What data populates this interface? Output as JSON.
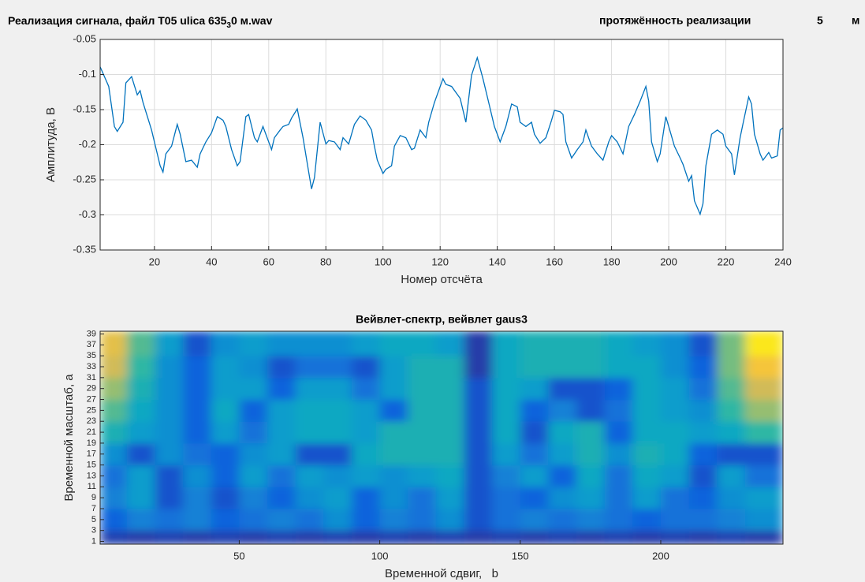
{
  "header": {
    "title_parts": [
      "Реализация сигнала, файл T05 ulica 635",
      "3",
      "0 м.wav"
    ],
    "length_label": "протяжённость реализации",
    "length_value": 5,
    "length_unit": "м"
  },
  "chart_data": [
    {
      "type": "line",
      "xlabel": "Номер отсчёта",
      "ylabel": "Амплитуда, В",
      "grid": true,
      "xlim": [
        1,
        240
      ],
      "xticks": [
        20,
        40,
        60,
        80,
        100,
        120,
        140,
        160,
        180,
        200,
        220,
        240
      ],
      "ylim": [
        -0.35,
        -0.05
      ],
      "yticks": [
        -0.35,
        -0.3,
        -0.25,
        -0.2,
        -0.15,
        -0.1,
        -0.05
      ],
      "color": "#0072bd",
      "x": [
        1,
        4,
        6,
        7,
        9,
        10,
        12,
        14,
        15,
        16,
        19,
        22,
        23,
        24,
        26,
        28,
        29,
        31,
        33,
        35,
        36,
        38,
        40,
        42,
        44,
        45,
        47,
        49,
        50,
        52,
        53,
        55,
        56,
        58,
        61,
        62,
        64,
        65,
        67,
        68,
        70,
        72,
        74,
        75,
        76,
        78,
        80,
        81,
        83,
        85,
        86,
        88,
        90,
        92,
        94,
        96,
        97,
        98,
        100,
        101,
        103,
        104,
        106,
        108,
        110,
        111,
        113,
        115,
        116,
        118,
        121,
        122,
        124,
        127,
        129,
        131,
        133,
        135,
        137,
        139,
        141,
        143,
        145,
        147,
        148,
        150,
        152,
        153,
        155,
        157,
        159,
        160,
        162,
        163,
        164,
        166,
        168,
        170,
        171,
        173,
        175,
        177,
        179,
        180,
        182,
        184,
        186,
        188,
        190,
        192,
        193,
        194,
        196,
        197,
        199,
        200,
        202,
        204,
        205,
        207,
        208,
        209,
        211,
        212,
        213,
        215,
        217,
        219,
        220,
        222,
        223,
        225,
        226,
        228,
        229,
        230,
        232,
        233,
        235,
        236,
        238,
        239,
        240
      ],
      "values": [
        -0.089,
        -0.117,
        -0.174,
        -0.181,
        -0.168,
        -0.112,
        -0.103,
        -0.129,
        -0.123,
        -0.14,
        -0.179,
        -0.23,
        -0.239,
        -0.213,
        -0.202,
        -0.171,
        -0.185,
        -0.224,
        -0.222,
        -0.232,
        -0.213,
        -0.196,
        -0.183,
        -0.16,
        -0.165,
        -0.174,
        -0.207,
        -0.23,
        -0.224,
        -0.16,
        -0.157,
        -0.19,
        -0.196,
        -0.174,
        -0.207,
        -0.19,
        -0.179,
        -0.174,
        -0.171,
        -0.162,
        -0.149,
        -0.19,
        -0.239,
        -0.263,
        -0.247,
        -0.168,
        -0.199,
        -0.194,
        -0.196,
        -0.207,
        -0.19,
        -0.199,
        -0.171,
        -0.159,
        -0.165,
        -0.179,
        -0.202,
        -0.222,
        -0.241,
        -0.235,
        -0.23,
        -0.202,
        -0.187,
        -0.19,
        -0.207,
        -0.205,
        -0.179,
        -0.19,
        -0.168,
        -0.14,
        -0.106,
        -0.114,
        -0.117,
        -0.134,
        -0.168,
        -0.101,
        -0.076,
        -0.106,
        -0.14,
        -0.174,
        -0.196,
        -0.174,
        -0.142,
        -0.146,
        -0.168,
        -0.174,
        -0.168,
        -0.185,
        -0.198,
        -0.19,
        -0.165,
        -0.151,
        -0.153,
        -0.157,
        -0.196,
        -0.219,
        -0.207,
        -0.196,
        -0.179,
        -0.202,
        -0.213,
        -0.222,
        -0.196,
        -0.187,
        -0.196,
        -0.213,
        -0.174,
        -0.157,
        -0.138,
        -0.117,
        -0.138,
        -0.196,
        -0.224,
        -0.213,
        -0.16,
        -0.174,
        -0.202,
        -0.219,
        -0.228,
        -0.252,
        -0.244,
        -0.28,
        -0.299,
        -0.284,
        -0.23,
        -0.185,
        -0.179,
        -0.185,
        -0.202,
        -0.213,
        -0.243,
        -0.19,
        -0.17,
        -0.132,
        -0.142,
        -0.185,
        -0.213,
        -0.222,
        -0.211,
        -0.219,
        -0.216,
        -0.179,
        -0.176
      ]
    },
    {
      "type": "heatmap",
      "title": "Вейвлет-спектр, вейвлет gaus3",
      "xlabel": "Временной сдвиг,   b",
      "ylabel": "Временной масштаб, а",
      "xlim": [
        0.5,
        243.5
      ],
      "xticks": [
        50,
        100,
        150,
        200
      ],
      "ylim": [
        0.5,
        39.5
      ],
      "yticks": [
        1,
        3,
        5,
        7,
        9,
        11,
        13,
        15,
        17,
        19,
        21,
        23,
        25,
        27,
        29,
        31,
        33,
        35,
        37,
        39
      ],
      "zlim": [
        0,
        1
      ],
      "colormap": [
        "#352a87",
        "#0f5cdd",
        "#1481d6",
        "#06a4ca",
        "#2eb7a4",
        "#87bf77",
        "#d1bb59",
        "#fec832",
        "#f9fb0e"
      ],
      "x": [
        5,
        15,
        25,
        35,
        45,
        55,
        65,
        75,
        85,
        95,
        105,
        115,
        125,
        135,
        145,
        155,
        165,
        175,
        185,
        195,
        205,
        215,
        225,
        235
      ],
      "y": [
        1,
        5,
        9,
        13,
        17,
        21,
        25,
        29,
        33,
        37
      ],
      "z": [
        [
          0.06,
          0.05,
          0.06,
          0.05,
          0.06,
          0.05,
          0.06,
          0.05,
          0.06,
          0.05,
          0.06,
          0.05,
          0.06,
          0.05,
          0.06,
          0.05,
          0.06,
          0.05,
          0.06,
          0.05,
          0.06,
          0.05,
          0.06,
          0.05
        ],
        [
          0.15,
          0.25,
          0.2,
          0.25,
          0.15,
          0.2,
          0.25,
          0.2,
          0.3,
          0.15,
          0.25,
          0.2,
          0.3,
          0.1,
          0.2,
          0.25,
          0.2,
          0.25,
          0.2,
          0.15,
          0.2,
          0.2,
          0.25,
          0.3
        ],
        [
          0.25,
          0.35,
          0.1,
          0.25,
          0.1,
          0.25,
          0.15,
          0.3,
          0.35,
          0.15,
          0.3,
          0.2,
          0.35,
          0.1,
          0.2,
          0.15,
          0.3,
          0.35,
          0.2,
          0.35,
          0.2,
          0.15,
          0.3,
          0.35
        ],
        [
          0.2,
          0.35,
          0.1,
          0.3,
          0.15,
          0.35,
          0.2,
          0.35,
          0.3,
          0.35,
          0.3,
          0.35,
          0.4,
          0.1,
          0.25,
          0.35,
          0.15,
          0.4,
          0.2,
          0.4,
          0.35,
          0.1,
          0.35,
          0.2
        ],
        [
          0.3,
          0.1,
          0.3,
          0.2,
          0.15,
          0.3,
          0.35,
          0.1,
          0.1,
          0.4,
          0.45,
          0.45,
          0.45,
          0.1,
          0.35,
          0.2,
          0.35,
          0.45,
          0.3,
          0.45,
          0.4,
          0.15,
          0.1,
          0.1
        ],
        [
          0.45,
          0.35,
          0.3,
          0.15,
          0.35,
          0.2,
          0.35,
          0.4,
          0.4,
          0.35,
          0.45,
          0.45,
          0.45,
          0.1,
          0.4,
          0.1,
          0.4,
          0.45,
          0.15,
          0.4,
          0.4,
          0.35,
          0.4,
          0.5
        ],
        [
          0.55,
          0.4,
          0.3,
          0.15,
          0.4,
          0.15,
          0.35,
          0.4,
          0.4,
          0.35,
          0.15,
          0.45,
          0.45,
          0.1,
          0.4,
          0.15,
          0.25,
          0.1,
          0.2,
          0.4,
          0.35,
          0.3,
          0.5,
          0.65
        ],
        [
          0.65,
          0.45,
          0.3,
          0.15,
          0.35,
          0.35,
          0.15,
          0.35,
          0.35,
          0.2,
          0.35,
          0.45,
          0.45,
          0.1,
          0.4,
          0.35,
          0.1,
          0.1,
          0.15,
          0.4,
          0.35,
          0.2,
          0.55,
          0.75
        ],
        [
          0.75,
          0.5,
          0.3,
          0.15,
          0.35,
          0.3,
          0.1,
          0.2,
          0.2,
          0.1,
          0.35,
          0.45,
          0.45,
          0.05,
          0.4,
          0.45,
          0.45,
          0.45,
          0.4,
          0.4,
          0.3,
          0.15,
          0.6,
          0.85
        ],
        [
          0.8,
          0.55,
          0.35,
          0.1,
          0.3,
          0.35,
          0.3,
          0.3,
          0.3,
          0.35,
          0.4,
          0.4,
          0.35,
          0.05,
          0.4,
          0.45,
          0.45,
          0.45,
          0.4,
          0.35,
          0.3,
          0.1,
          0.6,
          0.95
        ]
      ]
    }
  ]
}
